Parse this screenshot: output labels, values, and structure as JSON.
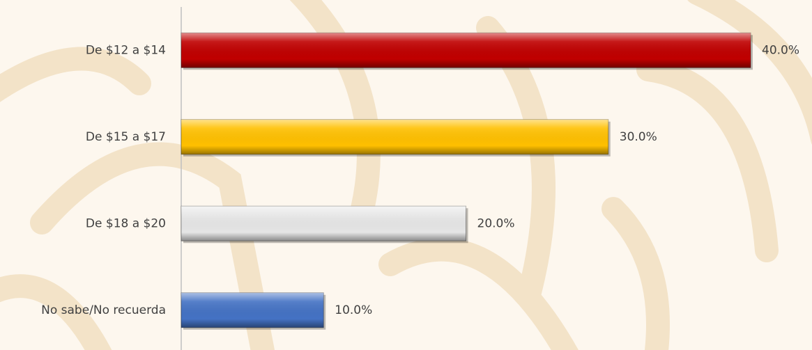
{
  "chart_data": {
    "type": "hbar",
    "categories": [
      "De $12 a $14",
      "De $15 a $17",
      "De $18 a $20",
      "No sabe/No recuerda"
    ],
    "values": [
      40,
      30,
      20,
      10
    ],
    "value_labels": [
      "40.0%",
      "30.0%",
      "20.0%",
      "10.0%"
    ],
    "colors": [
      "#c00000",
      "#ffc000",
      "#e6e6e6",
      "#4472c4"
    ],
    "xlim": [
      0,
      40
    ]
  }
}
